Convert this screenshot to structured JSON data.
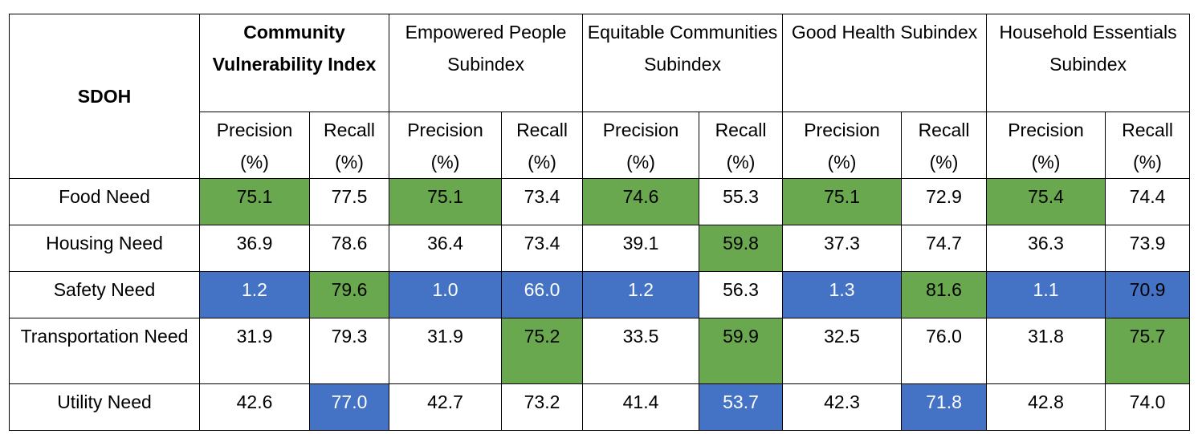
{
  "table": {
    "row_header": "SDOH",
    "groups": [
      {
        "label": "Community Vulnerability Index",
        "bold": true
      },
      {
        "label": "Empowered People Subindex",
        "bold": false
      },
      {
        "label": "Equitable Communities Subindex",
        "bold": false
      },
      {
        "label": "Good Health Subindex",
        "bold": false
      },
      {
        "label": "Household Essentials Subindex",
        "bold": false
      }
    ],
    "sub_headers": {
      "precision_line1": "Precision",
      "recall_line1": "Recall",
      "unit_line2": "(%)"
    },
    "rows": [
      {
        "label": "Food Need",
        "values": [
          "75.1",
          "77.5",
          "75.1",
          "73.4",
          "74.6",
          "55.3",
          "75.1",
          "72.9",
          "75.4",
          "74.4"
        ],
        "highlights": [
          "green",
          "",
          "green",
          "",
          "green",
          "",
          "green",
          "",
          "green",
          ""
        ]
      },
      {
        "label": "Housing Need",
        "values": [
          "36.9",
          "78.6",
          "36.4",
          "73.4",
          "39.1",
          "59.8",
          "37.3",
          "74.7",
          "36.3",
          "73.9"
        ],
        "highlights": [
          "",
          "",
          "",
          "",
          "",
          "green",
          "",
          "",
          "",
          ""
        ]
      },
      {
        "label": "Safety Need",
        "values": [
          "1.2",
          "79.6",
          "1.0",
          "66.0",
          "1.2",
          "56.3",
          "1.3",
          "81.6",
          "1.1",
          "70.9"
        ],
        "highlights": [
          "blue",
          "green",
          "blue",
          "blue",
          "blue",
          "",
          "blue",
          "green",
          "blue",
          "blue-dark"
        ]
      },
      {
        "label": "Transportation Need",
        "values": [
          "31.9",
          "79.3",
          "31.9",
          "75.2",
          "33.5",
          "59.9",
          "32.5",
          "76.0",
          "31.8",
          "75.7"
        ],
        "highlights": [
          "",
          "",
          "",
          "green",
          "",
          "green",
          "",
          "",
          "",
          "green"
        ]
      },
      {
        "label": "Utility Need",
        "values": [
          "42.6",
          "77.0",
          "42.7",
          "73.2",
          "41.4",
          "53.7",
          "42.3",
          "71.8",
          "42.8",
          "74.0"
        ],
        "highlights": [
          "",
          "blue",
          "",
          "",
          "",
          "blue",
          "",
          "blue",
          "",
          ""
        ]
      }
    ],
    "colors": {
      "green": "#6aa84f",
      "blue": "#4472c4"
    }
  }
}
